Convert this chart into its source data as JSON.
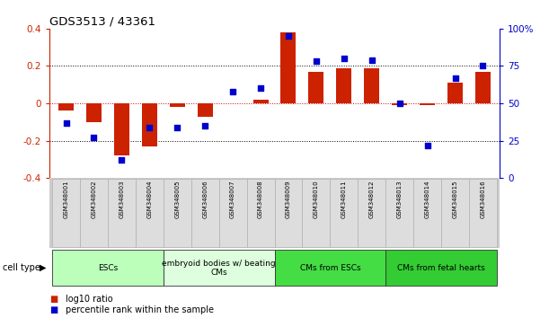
{
  "title": "GDS3513 / 43361",
  "samples": [
    "GSM348001",
    "GSM348002",
    "GSM348003",
    "GSM348004",
    "GSM348005",
    "GSM348006",
    "GSM348007",
    "GSM348008",
    "GSM348009",
    "GSM348010",
    "GSM348011",
    "GSM348012",
    "GSM348013",
    "GSM348014",
    "GSM348015",
    "GSM348016"
  ],
  "log10_ratio": [
    -0.04,
    -0.1,
    -0.28,
    -0.23,
    -0.02,
    -0.07,
    0.0,
    0.02,
    0.38,
    0.17,
    0.19,
    0.19,
    -0.01,
    -0.01,
    0.11,
    0.17
  ],
  "percentile_rank": [
    37,
    27,
    12,
    34,
    34,
    35,
    58,
    60,
    95,
    78,
    80,
    79,
    50,
    22,
    67,
    75
  ],
  "bar_color": "#cc2200",
  "dot_color": "#0000cc",
  "ylim_left": [
    -0.4,
    0.4
  ],
  "ylim_right": [
    0,
    100
  ],
  "yticks_left": [
    -0.4,
    -0.2,
    0.0,
    0.2,
    0.4
  ],
  "yticks_right": [
    0,
    25,
    50,
    75,
    100
  ],
  "ytick_labels_right": [
    "0",
    "25",
    "50",
    "75",
    "100%"
  ],
  "cell_type_groups": [
    {
      "label": "ESCs",
      "start": 0,
      "end": 3,
      "color": "#bbffbb"
    },
    {
      "label": "embryoid bodies w/ beating\nCMs",
      "start": 4,
      "end": 7,
      "color": "#ddffdd"
    },
    {
      "label": "CMs from ESCs",
      "start": 8,
      "end": 11,
      "color": "#44dd44"
    },
    {
      "label": "CMs from fetal hearts",
      "start": 12,
      "end": 15,
      "color": "#33cc33"
    }
  ],
  "legend_bar_label": "log10 ratio",
  "legend_dot_label": "percentile rank within the sample",
  "cell_type_label": "cell type",
  "dotted_line_color": "#000000",
  "zero_line_color": "#cc0000",
  "bg_color": "#ffffff"
}
